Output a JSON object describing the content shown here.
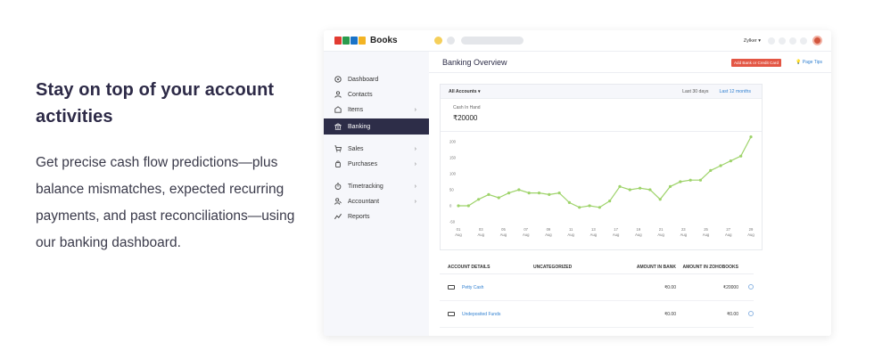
{
  "promo": {
    "heading": "Stay on top of your account activities",
    "body": "Get precise cash flow predictions—plus balance mismatches, expected recurring payments, and past reconciliations—using our banking dashboard."
  },
  "app": {
    "logo_text": "Books",
    "org_name": "Zylker ▾",
    "sidebar": {
      "items": [
        {
          "label": "Dashboard",
          "icon": "dashboard-icon",
          "chevron": ""
        },
        {
          "label": "Contacts",
          "icon": "contacts-icon",
          "chevron": ""
        },
        {
          "label": "Items",
          "icon": "items-icon",
          "chevron": "›"
        },
        {
          "label": "Banking",
          "icon": "bank-icon",
          "chevron": ""
        },
        {
          "label": "Sales",
          "icon": "cart-icon",
          "chevron": "›"
        },
        {
          "label": "Purchases",
          "icon": "bag-icon",
          "chevron": "›"
        },
        {
          "label": "Timetracking",
          "icon": "stopwatch-icon",
          "chevron": "›"
        },
        {
          "label": "Accountant",
          "icon": "accountant-icon",
          "chevron": "›"
        },
        {
          "label": "Reports",
          "icon": "reports-icon",
          "chevron": ""
        }
      ],
      "active_index": 3
    },
    "main": {
      "title": "Banking Overview",
      "add_button": "Add Bank or Credit Card",
      "page_tips": "Page Tips",
      "card": {
        "account_filter": "All Accounts ▾",
        "range_30": "Last 30 days",
        "range_12": "Last 12 months",
        "cash_label": "Cash In Hand",
        "cash_value": "₹20000"
      },
      "table": {
        "headers": [
          "ACCOUNT DETAILS",
          "UNCATEGORIZED",
          "AMOUNT IN BANK",
          "AMOUNT IN ZOHOBOOKS"
        ],
        "rows": [
          {
            "name": "Petty Cash",
            "uncategorized": "",
            "bank": "₹0.00",
            "books": "₹20000"
          },
          {
            "name": "Undeposited Funds",
            "uncategorized": "",
            "bank": "₹0.00",
            "books": "₹0.00"
          }
        ]
      }
    }
  },
  "chart_data": {
    "type": "line",
    "color": "#9ed36a",
    "ylim": [
      -50,
      200
    ],
    "yticks": [
      "200",
      "150",
      "100",
      "50",
      "0",
      "-50"
    ],
    "x_labels": [
      "01 Aug",
      "03 Aug",
      "05 Aug",
      "07 Aug",
      "09 Aug",
      "11 Aug",
      "13 Aug",
      "17 Aug",
      "19 Aug",
      "21 Aug",
      "23 Aug",
      "25 Aug",
      "27 Aug",
      "29 Aug"
    ],
    "values": [
      0,
      0,
      20,
      35,
      25,
      40,
      50,
      40,
      40,
      35,
      40,
      10,
      -5,
      0,
      -5,
      15,
      60,
      50,
      55,
      50,
      20,
      60,
      75,
      80,
      80,
      110,
      125,
      140,
      155,
      215
    ]
  }
}
